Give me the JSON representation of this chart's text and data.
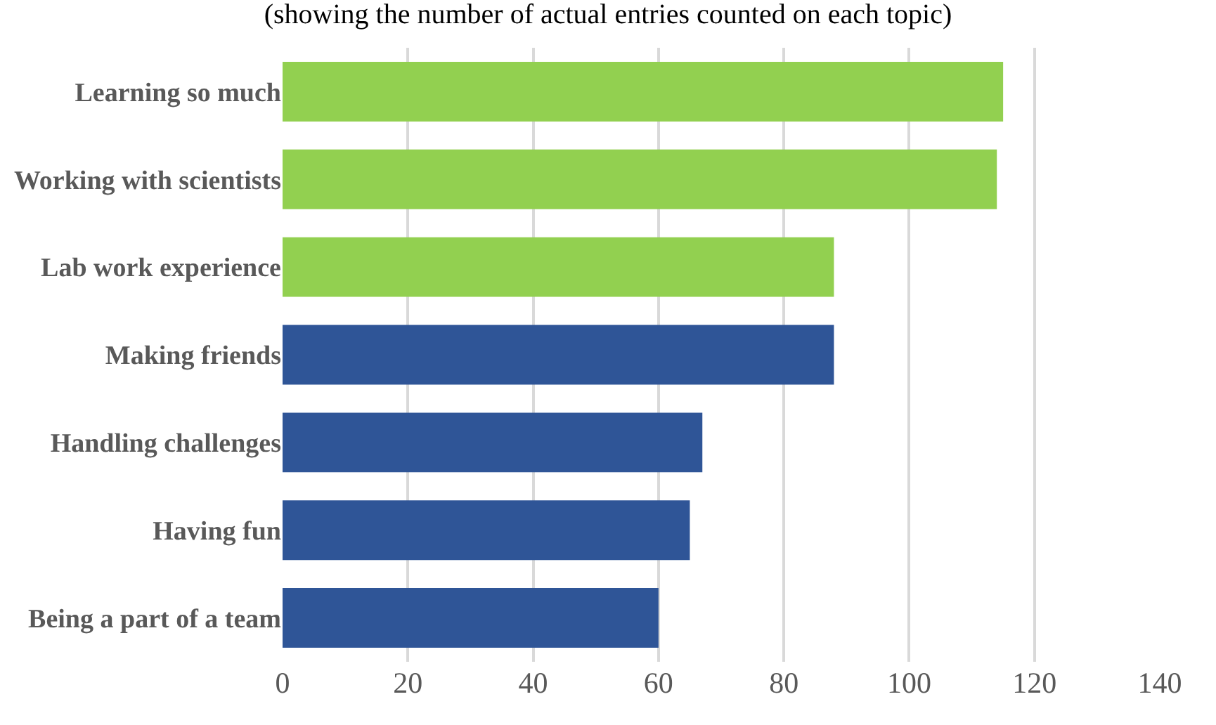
{
  "chart_data": {
    "type": "bar",
    "orientation": "horizontal",
    "title": "(showing the number of actual entries counted on each topic)",
    "categories": [
      "Learning so much",
      "Working with scientists",
      "Lab work experience",
      "Making friends",
      "Handling challenges",
      "Having fun",
      "Being a part of a team"
    ],
    "values": [
      115,
      114,
      88,
      88,
      67,
      65,
      60
    ],
    "colors": [
      "#92d050",
      "#92d050",
      "#92d050",
      "#2f5597",
      "#2f5597",
      "#2f5597",
      "#2f5597"
    ],
    "xlim": [
      0,
      140
    ],
    "xticks": [
      0,
      20,
      40,
      60,
      80,
      100,
      120,
      140
    ],
    "grid": "x"
  }
}
